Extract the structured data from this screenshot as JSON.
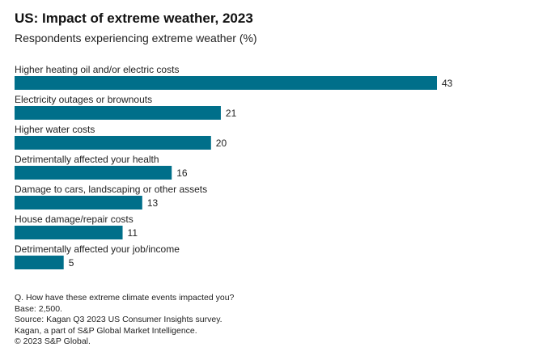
{
  "chart_data": {
    "type": "bar",
    "orientation": "horizontal",
    "title": "US: Impact of extreme weather, 2023",
    "subtitle": "Respondents experiencing extreme weather (%)",
    "categories": [
      "Higher heating oil and/or electric costs",
      "Electricity outages or brownouts",
      "Higher water costs",
      "Detrimentally affected your health",
      "Damage to cars, landscaping or other assets",
      "House damage/repair costs",
      "Detrimentally affected your job/income"
    ],
    "values": [
      43,
      21,
      20,
      16,
      13,
      11,
      5
    ],
    "xlabel": "",
    "ylabel": "",
    "xlim": [
      0,
      43
    ],
    "grid": false,
    "legend": "none",
    "bar_color": "#006f8a"
  },
  "footnotes": [
    "Q. How have these extreme climate events impacted you?",
    "Base: 2,500.",
    "Source: Kagan Q3 2023 US Consumer Insights survey.",
    "Kagan, a part of S&P Global Market Intelligence.",
    "© 2023 S&P Global."
  ]
}
